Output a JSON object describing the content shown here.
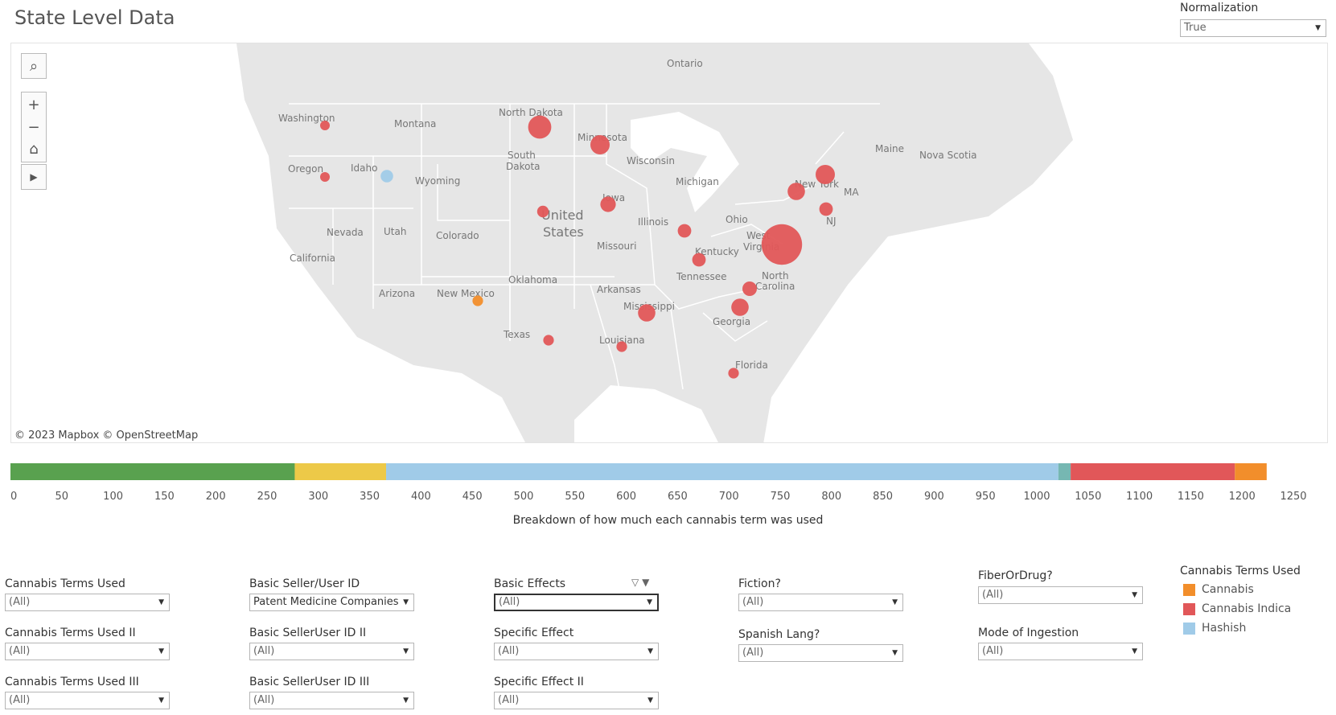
{
  "title": "State Level Data",
  "normalization": {
    "label": "Normalization",
    "value": "True"
  },
  "map": {
    "attribution": "© 2023 Mapbox  © OpenStreetMap",
    "labels": {
      "ontario": "Ontario",
      "montana": "Montana",
      "washington": "Washington",
      "oregon": "Oregon",
      "idaho": "Idaho",
      "wyoming": "Wyoming",
      "nevada": "Nevada",
      "utah": "Utah",
      "colorado": "Colorado",
      "california": "California",
      "arizona": "Arizona",
      "new_mexico": "New Mexico",
      "texas": "Texas",
      "oklahoma": "Oklahoma",
      "north_dakota": "North Dakota",
      "south_dakota_1": "South",
      "south_dakota_2": "Dakota",
      "minnesota": "Minnesota",
      "wisconsin": "Wisconsin",
      "michigan": "Michigan",
      "iowa": "Iowa",
      "illinois": "Illinois",
      "missouri": "Missouri",
      "arkansas": "Arkansas",
      "louisiana": "Louisiana",
      "mississippi": "Mississippi",
      "tennessee": "Tennessee",
      "kentucky": "Kentucky",
      "ohio": "Ohio",
      "west_1": "West",
      "west_2": "Virginia",
      "georgia": "Georgia",
      "florida": "Florida",
      "north_carolina_1": "North",
      "north_carolina_2": "Carolina",
      "new_york": "New York",
      "nj": "NJ",
      "ma": "MA",
      "maine": "Maine",
      "nova_scotia": "Nova Scotia",
      "us_1": "United",
      "us_2": "States"
    },
    "points": [
      {
        "state": "Washington",
        "term": "Cannabis Indica",
        "size": 1
      },
      {
        "state": "Oregon",
        "term": "Cannabis Indica",
        "size": 1
      },
      {
        "state": "Idaho",
        "term": "Hashish",
        "size": 1.3
      },
      {
        "state": "North Dakota",
        "term": "Cannabis Indica",
        "size": 2.4
      },
      {
        "state": "Minnesota",
        "term": "Cannabis Indica",
        "size": 2
      },
      {
        "state": "Nebraska",
        "term": "Cannabis Indica",
        "size": 1.2
      },
      {
        "state": "Iowa",
        "term": "Cannabis Indica",
        "size": 1.6
      },
      {
        "state": "Indiana",
        "term": "Cannabis Indica",
        "size": 1.4
      },
      {
        "state": "Kentucky",
        "term": "Cannabis Indica",
        "size": 1.4
      },
      {
        "state": "Virginia",
        "term": "Cannabis Indica",
        "size": 4.2
      },
      {
        "state": "Vermont",
        "term": "Cannabis Indica",
        "size": 2
      },
      {
        "state": "New York",
        "term": "Cannabis Indica",
        "size": 1.8
      },
      {
        "state": "Connecticut",
        "term": "Cannabis Indica",
        "size": 1.4
      },
      {
        "state": "North Carolina",
        "term": "Cannabis Indica",
        "size": 1.5
      },
      {
        "state": "South Carolina",
        "term": "Cannabis Indica",
        "size": 1.8
      },
      {
        "state": "Mississippi",
        "term": "Cannabis Indica",
        "size": 1.8
      },
      {
        "state": "Louisiana",
        "term": "Cannabis Indica",
        "size": 1.1
      },
      {
        "state": "Texas",
        "term": "Cannabis Indica",
        "size": 1.1
      },
      {
        "state": "New Mexico",
        "term": "Cannabis",
        "size": 1.1
      },
      {
        "state": "Florida",
        "term": "Cannabis Indica",
        "size": 1.1
      }
    ]
  },
  "breakdown": {
    "caption": "Breakdown of how much each cannabis term was used",
    "xlim": [
      0,
      1250
    ],
    "ticks": [
      "0",
      "50",
      "100",
      "150",
      "200",
      "250",
      "300",
      "350",
      "400",
      "450",
      "500",
      "550",
      "600",
      "650",
      "700",
      "750",
      "800",
      "850",
      "900",
      "950",
      "1000",
      "1050",
      "1100",
      "1150",
      "1200",
      "1250"
    ],
    "segments": [
      {
        "color": "#59a14f",
        "value": 277
      },
      {
        "color": "#edc948",
        "value": 89
      },
      {
        "color": "#a0cbe8",
        "value": 655
      },
      {
        "color": "#76b7b2",
        "value": 12
      },
      {
        "color": "#e15759",
        "value": 160
      },
      {
        "color": "#f28e2b",
        "value": 31
      }
    ]
  },
  "filters": {
    "terms": {
      "label": "Cannabis Terms Used",
      "value": "(All)"
    },
    "terms2": {
      "label": "Cannabis Terms Used II",
      "value": "(All)"
    },
    "terms3": {
      "label": "Cannabis Terms Used III",
      "value": "(All)"
    },
    "seller": {
      "label": "Basic Seller/User ID",
      "value": "Patent Medicine Companies"
    },
    "seller2": {
      "label": "Basic SellerUser ID II",
      "value": "(All)"
    },
    "seller3": {
      "label": "Basic SellerUser ID III",
      "value": "(All)"
    },
    "effects": {
      "label": "Basic Effects",
      "value": "(All)"
    },
    "specific": {
      "label": "Specific Effect",
      "value": "(All)"
    },
    "specific2": {
      "label": "Specific Effect II",
      "value": "(All)"
    },
    "fiction": {
      "label": "Fiction?",
      "value": "(All)"
    },
    "spanish": {
      "label": "Spanish Lang?",
      "value": "(All)"
    },
    "fiber": {
      "label": "FiberOrDrug?",
      "value": "(All)"
    },
    "mode": {
      "label": "Mode of Ingestion",
      "value": "(All)"
    }
  },
  "legend": {
    "title": "Cannabis Terms Used",
    "items": [
      {
        "label": "Cannabis",
        "color": "#f28e2b"
      },
      {
        "label": "Cannabis Indica",
        "color": "#e15759"
      },
      {
        "label": "Hashish",
        "color": "#a0cbe8"
      }
    ]
  }
}
